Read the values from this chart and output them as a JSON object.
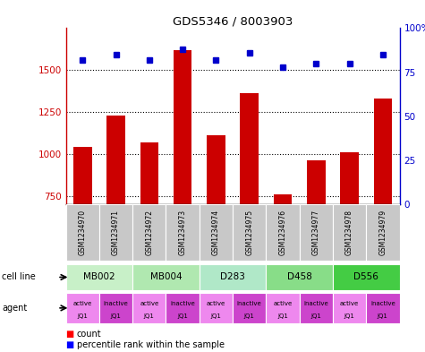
{
  "title": "GDS5346 / 8003903",
  "samples": [
    "GSM1234970",
    "GSM1234971",
    "GSM1234972",
    "GSM1234973",
    "GSM1234974",
    "GSM1234975",
    "GSM1234976",
    "GSM1234977",
    "GSM1234978",
    "GSM1234979"
  ],
  "counts": [
    1040,
    1230,
    1070,
    1620,
    1110,
    1360,
    760,
    960,
    1010,
    1330
  ],
  "percentiles": [
    82,
    85,
    82,
    88,
    82,
    86,
    78,
    80,
    80,
    85
  ],
  "cell_lines": [
    {
      "label": "MB002",
      "start": 0,
      "end": 2,
      "color": "#c8f0c8"
    },
    {
      "label": "MB004",
      "start": 2,
      "end": 4,
      "color": "#b0e8b0"
    },
    {
      "label": "D283",
      "start": 4,
      "end": 6,
      "color": "#b0e8c8"
    },
    {
      "label": "D458",
      "start": 6,
      "end": 8,
      "color": "#88dd88"
    },
    {
      "label": "D556",
      "start": 8,
      "end": 10,
      "color": "#44cc44"
    }
  ],
  "agent_labels_top": [
    "active",
    "inactive",
    "active",
    "inactive",
    "active",
    "inactive",
    "active",
    "inactive",
    "active",
    "inactive"
  ],
  "agent_labels_bot": [
    "JQ1",
    "JQ1",
    "JQ1",
    "JQ1",
    "JQ1",
    "JQ1",
    "JQ1",
    "JQ1",
    "JQ1",
    "JQ1"
  ],
  "agent_bg_colors": [
    "#ee88ee",
    "#cc44cc",
    "#ee88ee",
    "#cc44cc",
    "#ee88ee",
    "#cc44cc",
    "#ee88ee",
    "#cc44cc",
    "#ee88ee",
    "#cc44cc"
  ],
  "bar_color": "#cc0000",
  "dot_color": "#0000cc",
  "ylim_left": [
    700,
    1750
  ],
  "ylim_right": [
    0,
    100
  ],
  "yticks_left": [
    750,
    1000,
    1250,
    1500
  ],
  "yticks_right": [
    0,
    25,
    50,
    75,
    100
  ],
  "sample_col_color": "#c8c8c8",
  "left_label_color": "#cc0000",
  "right_label_color": "#0000cc"
}
